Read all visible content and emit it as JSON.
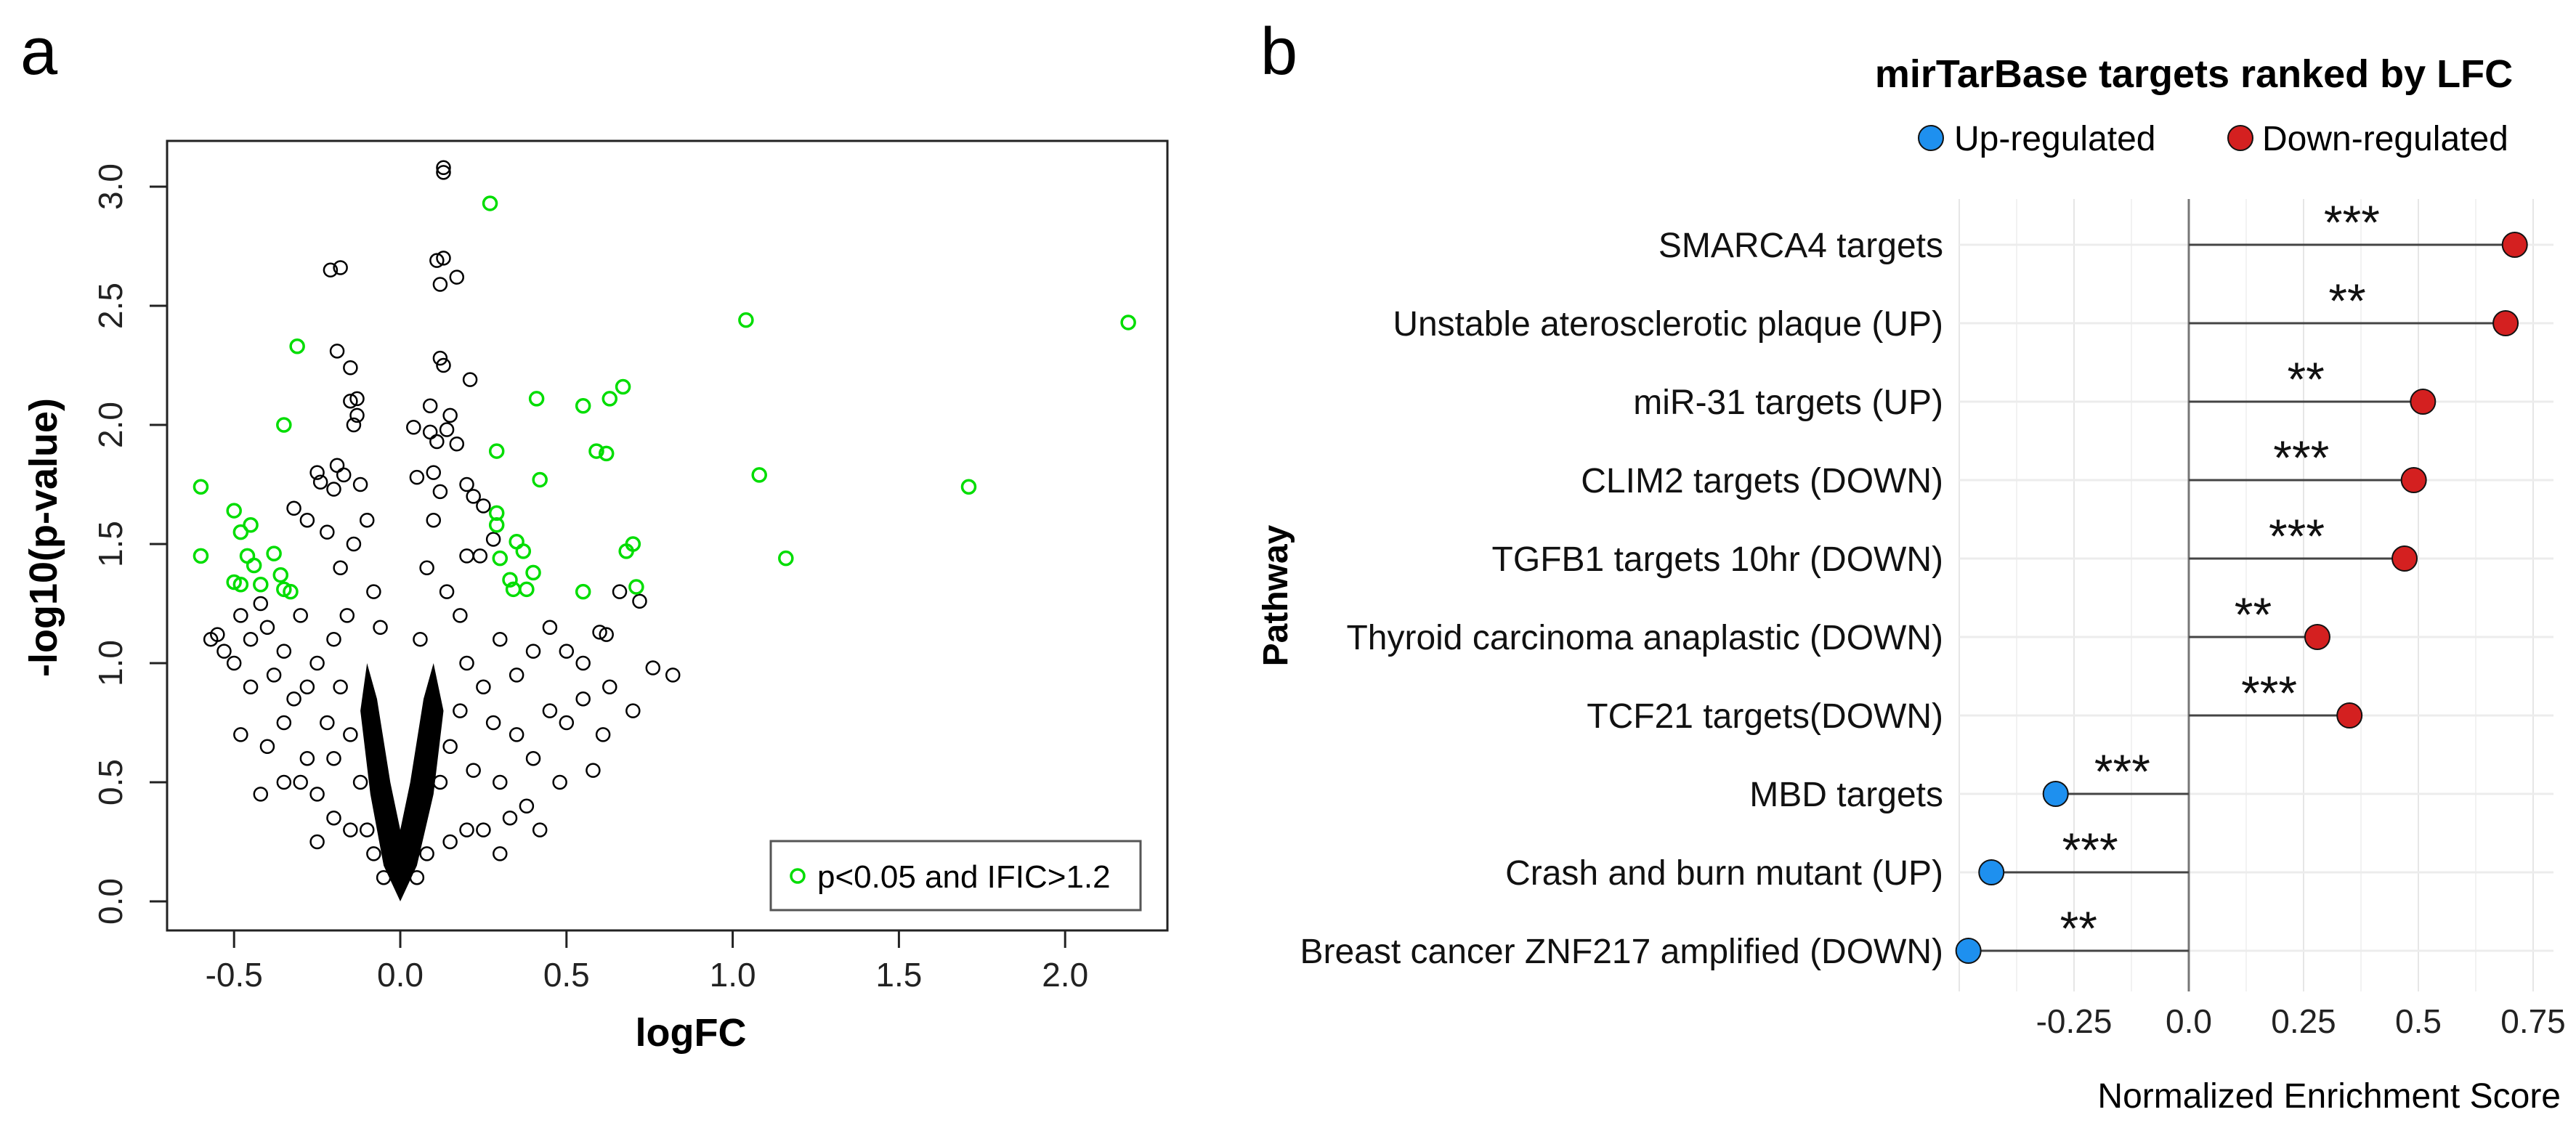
{
  "chart_data": [
    {
      "panel_label": "a",
      "type": "scatter",
      "title": "",
      "xlabel": "logFC",
      "ylabel": "-log10(p-value)",
      "xlim": [
        -0.7,
        2.3
      ],
      "ylim": [
        -0.1,
        3.2
      ],
      "xticks": [
        -0.5,
        0.0,
        0.5,
        1.0,
        1.5,
        2.0
      ],
      "xtick_labels": [
        "-0.5",
        "0.0",
        "0.5",
        "1.0",
        "1.5",
        "2.0"
      ],
      "yticks": [
        0.0,
        0.5,
        1.0,
        1.5,
        2.0,
        2.5,
        3.0
      ],
      "ytick_labels": [
        "0.0",
        "0.5",
        "1.0",
        "1.5",
        "2.0",
        "2.5",
        "3.0"
      ],
      "grid": false,
      "legend": {
        "position": "bottom-right",
        "entries": [
          {
            "label": "p<0.05 and IFIC>1.2",
            "color": "#00dd00"
          }
        ]
      },
      "colors": {
        "significant": "#00dd00",
        "other": "#000000"
      },
      "core_envelope": [
        [
          0,
          0
        ],
        [
          -0.05,
          0.15
        ],
        [
          -0.09,
          0.45
        ],
        [
          -0.12,
          0.8
        ],
        [
          -0.1,
          1.0
        ],
        [
          -0.07,
          0.85
        ],
        [
          -0.03,
          0.5
        ],
        [
          0,
          0.3
        ],
        [
          0.03,
          0.5
        ],
        [
          0.07,
          0.85
        ],
        [
          0.1,
          1.0
        ],
        [
          0.13,
          0.8
        ],
        [
          0.1,
          0.45
        ],
        [
          0.05,
          0.15
        ]
      ],
      "series": [
        {
          "name": "other",
          "points": [
            [
              0.13,
              3.08
            ],
            [
              0.13,
              3.06
            ],
            [
              -0.21,
              2.65
            ],
            [
              -0.18,
              2.66
            ],
            [
              0.11,
              2.69
            ],
            [
              0.13,
              2.7
            ],
            [
              0.12,
              2.59
            ],
            [
              0.17,
              2.62
            ],
            [
              -0.19,
              2.31
            ],
            [
              -0.15,
              2.24
            ],
            [
              0.12,
              2.28
            ],
            [
              0.13,
              2.25
            ],
            [
              0.21,
              2.19
            ],
            [
              -0.15,
              2.1
            ],
            [
              -0.13,
              2.11
            ],
            [
              -0.13,
              2.04
            ],
            [
              0.09,
              2.08
            ],
            [
              0.15,
              2.04
            ],
            [
              -0.14,
              2.0
            ],
            [
              0.04,
              1.99
            ],
            [
              0.09,
              1.97
            ],
            [
              0.11,
              1.93
            ],
            [
              0.14,
              1.98
            ],
            [
              0.17,
              1.92
            ],
            [
              -0.25,
              1.8
            ],
            [
              -0.24,
              1.76
            ],
            [
              -0.19,
              1.83
            ],
            [
              -0.2,
              1.73
            ],
            [
              -0.17,
              1.79
            ],
            [
              -0.12,
              1.75
            ],
            [
              0.05,
              1.78
            ],
            [
              0.1,
              1.8
            ],
            [
              0.12,
              1.72
            ],
            [
              0.2,
              1.75
            ],
            [
              0.22,
              1.7
            ],
            [
              0.25,
              1.66
            ],
            [
              -0.32,
              1.65
            ],
            [
              -0.28,
              1.6
            ],
            [
              -0.22,
              1.55
            ],
            [
              0.28,
              1.52
            ],
            [
              0.24,
              1.45
            ],
            [
              -0.55,
              1.12
            ],
            [
              -0.57,
              1.1
            ],
            [
              -0.53,
              1.05
            ],
            [
              -0.5,
              1.0
            ],
            [
              -0.48,
              1.2
            ],
            [
              -0.45,
              1.1
            ],
            [
              -0.42,
              1.25
            ],
            [
              -0.4,
              1.15
            ],
            [
              -0.38,
              0.95
            ],
            [
              -0.35,
              1.05
            ],
            [
              -0.32,
              0.85
            ],
            [
              -0.3,
              1.2
            ],
            [
              -0.28,
              0.9
            ],
            [
              -0.25,
              1.0
            ],
            [
              -0.22,
              0.75
            ],
            [
              -0.2,
              0.6
            ],
            [
              0.45,
              1.15
            ],
            [
              0.5,
              1.05
            ],
            [
              0.55,
              1.0
            ],
            [
              0.6,
              1.13
            ],
            [
              0.62,
              1.12
            ],
            [
              0.63,
              0.9
            ],
            [
              0.66,
              1.3
            ],
            [
              0.72,
              1.26
            ],
            [
              0.76,
              0.98
            ],
            [
              0.82,
              0.95
            ],
            [
              0.61,
              0.7
            ],
            [
              0.55,
              0.85
            ],
            [
              0.5,
              0.75
            ],
            [
              0.45,
              0.8
            ],
            [
              0.4,
              0.6
            ],
            [
              0.35,
              0.7
            ],
            [
              0.3,
              0.5
            ],
            [
              0.38,
              0.4
            ],
            [
              0.25,
              0.3
            ],
            [
              -0.45,
              0.9
            ],
            [
              -0.4,
              0.65
            ],
            [
              -0.35,
              0.75
            ],
            [
              -0.3,
              0.5
            ],
            [
              -0.28,
              0.6
            ],
            [
              -0.25,
              0.45
            ],
            [
              -0.35,
              0.5
            ],
            [
              -0.2,
              0.35
            ],
            [
              -0.15,
              0.3
            ],
            [
              0.2,
              0.3
            ],
            [
              0.15,
              0.25
            ],
            [
              -0.18,
              1.4
            ],
            [
              -0.16,
              1.2
            ],
            [
              -0.14,
              1.5
            ],
            [
              -0.1,
              1.6
            ],
            [
              -0.08,
              1.3
            ],
            [
              0.08,
              1.4
            ],
            [
              0.1,
              1.6
            ],
            [
              0.14,
              1.3
            ],
            [
              0.18,
              1.2
            ],
            [
              0.2,
              1.0
            ],
            [
              0.25,
              0.9
            ],
            [
              0.3,
              1.1
            ],
            [
              0.35,
              0.95
            ],
            [
              0.4,
              1.05
            ],
            [
              -0.18,
              0.9
            ],
            [
              -0.15,
              0.7
            ],
            [
              -0.12,
              0.5
            ],
            [
              -0.1,
              0.3
            ],
            [
              0.12,
              0.5
            ],
            [
              0.15,
              0.65
            ],
            [
              0.18,
              0.8
            ],
            [
              0.22,
              0.55
            ],
            [
              0.28,
              0.75
            ],
            [
              0.33,
              0.35
            ],
            [
              -0.05,
              0.1
            ],
            [
              0.05,
              0.1
            ],
            [
              -0.08,
              0.2
            ],
            [
              0.08,
              0.2
            ],
            [
              -0.25,
              0.25
            ],
            [
              0.3,
              0.2
            ],
            [
              0.42,
              0.3
            ],
            [
              0.48,
              0.5
            ],
            [
              -0.42,
              0.45
            ],
            [
              -0.48,
              0.7
            ],
            [
              0.58,
              0.55
            ],
            [
              0.7,
              0.8
            ],
            [
              0.2,
              1.45
            ],
            [
              -0.2,
              1.1
            ],
            [
              0.06,
              1.1
            ],
            [
              -0.06,
              1.15
            ]
          ]
        },
        {
          "name": "p<0.05 and IFIC>1.2",
          "points": [
            [
              -0.6,
              1.74
            ],
            [
              -0.6,
              1.45
            ],
            [
              -0.5,
              1.64
            ],
            [
              -0.48,
              1.55
            ],
            [
              -0.45,
              1.58
            ],
            [
              -0.46,
              1.45
            ],
            [
              -0.44,
              1.41
            ],
            [
              -0.5,
              1.34
            ],
            [
              -0.48,
              1.33
            ],
            [
              -0.42,
              1.33
            ],
            [
              -0.38,
              1.46
            ],
            [
              -0.36,
              1.37
            ],
            [
              -0.35,
              1.31
            ],
            [
              -0.33,
              1.3
            ],
            [
              -0.35,
              2.0
            ],
            [
              -0.31,
              2.33
            ],
            [
              0.27,
              2.93
            ],
            [
              0.29,
              1.89
            ],
            [
              0.29,
              1.63
            ],
            [
              0.29,
              1.58
            ],
            [
              0.3,
              1.44
            ],
            [
              0.33,
              1.35
            ],
            [
              0.34,
              1.31
            ],
            [
              0.35,
              1.51
            ],
            [
              0.37,
              1.47
            ],
            [
              0.38,
              1.31
            ],
            [
              0.4,
              1.38
            ],
            [
              0.41,
              2.11
            ],
            [
              0.42,
              1.77
            ],
            [
              0.55,
              2.08
            ],
            [
              0.55,
              1.3
            ],
            [
              0.59,
              1.89
            ],
            [
              0.62,
              1.88
            ],
            [
              0.63,
              2.11
            ],
            [
              0.67,
              2.16
            ],
            [
              0.68,
              1.47
            ],
            [
              0.7,
              1.5
            ],
            [
              0.71,
              1.32
            ],
            [
              1.04,
              2.44
            ],
            [
              1.08,
              1.79
            ],
            [
              1.16,
              1.44
            ],
            [
              1.71,
              1.74
            ],
            [
              2.19,
              2.43
            ]
          ]
        }
      ]
    },
    {
      "panel_label": "b",
      "type": "lollipop",
      "title": "mirTarBase targets ranked by LFC",
      "xlabel": "Normalized Enrichment Score",
      "ylabel": "Pathway",
      "xlim": [
        -0.5,
        0.78
      ],
      "xticks": [
        -0.25,
        0.0,
        0.25,
        0.5,
        0.75
      ],
      "xtick_labels": [
        "-0.25",
        "0.0",
        "0.25",
        "0.5",
        "0.75"
      ],
      "grid": true,
      "legend": {
        "position": "top",
        "entries": [
          {
            "label": "Up-regulated",
            "color": "#1e90ef"
          },
          {
            "label": "Down-regulated",
            "color": "#d42020"
          }
        ]
      },
      "categories": [
        "SMARCA4 targets",
        "Unstable aterosclerotic plaque (UP)",
        "miR-31 targets (UP)",
        "CLIM2 targets (DOWN)",
        "TGFB1 targets 10hr (DOWN)",
        "Thyroid carcinoma anaplastic (DOWN)",
        "TCF21 targets(DOWN)",
        "MBD targets",
        "Crash and burn mutant (UP)",
        "Breast cancer ZNF217 amplified (DOWN)"
      ],
      "values": [
        0.71,
        0.69,
        0.51,
        0.49,
        0.47,
        0.28,
        0.35,
        -0.29,
        -0.43,
        -0.48
      ],
      "significance": [
        "***",
        "**",
        "**",
        "***",
        "***",
        "**",
        "***",
        "***",
        "***",
        "**"
      ]
    }
  ]
}
